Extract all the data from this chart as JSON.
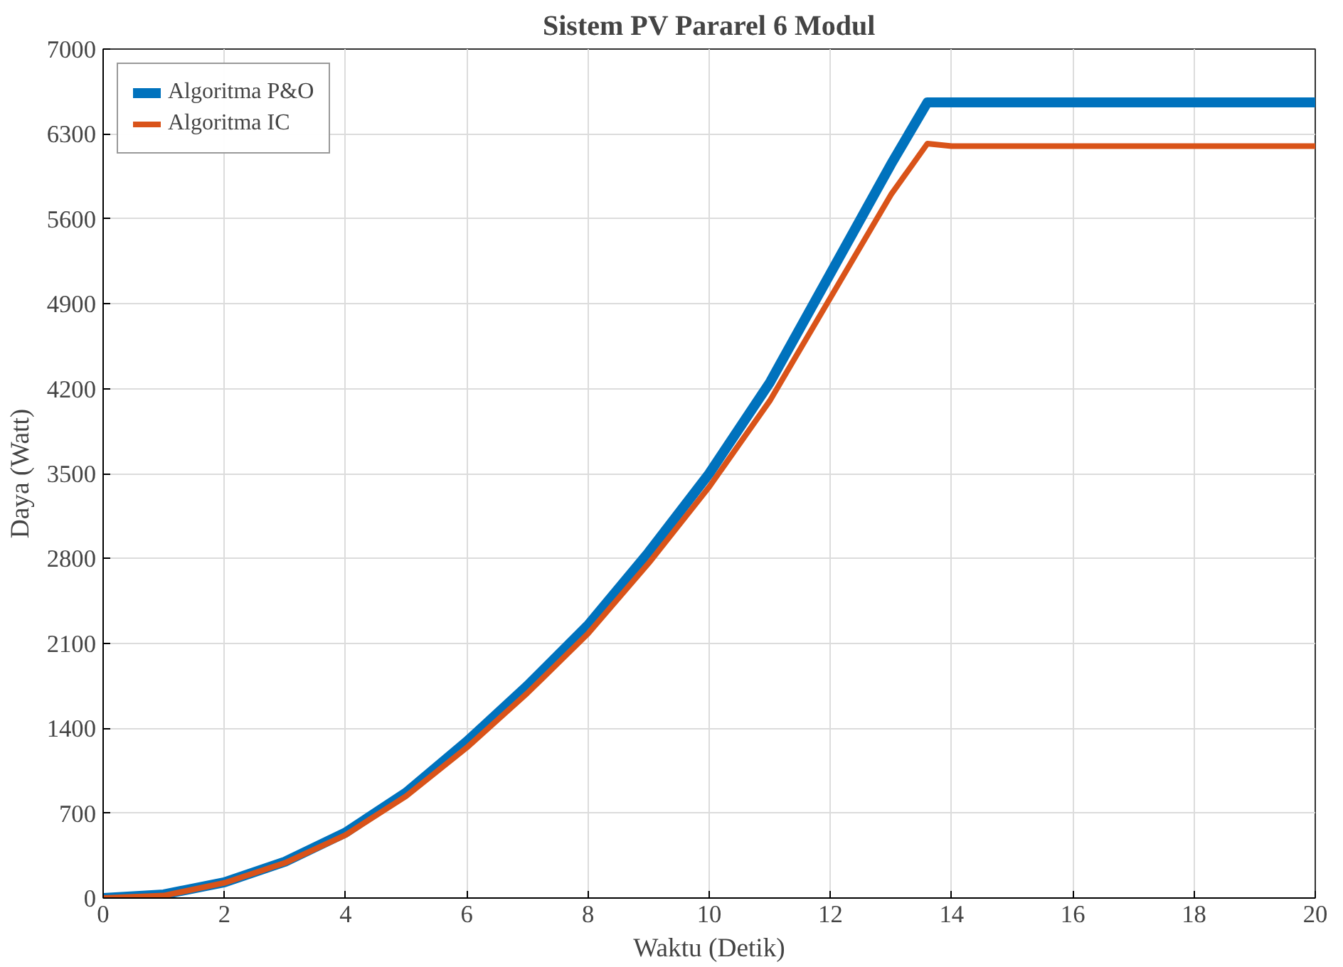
{
  "chart_data": {
    "type": "line",
    "title": "Sistem PV Pararel 6 Modul",
    "xlabel": "Waktu (Detik)",
    "ylabel": "Daya (Watt)",
    "xlim": [
      0,
      20
    ],
    "xticks": [
      0,
      2,
      4,
      6,
      8,
      10,
      12,
      14,
      16,
      18,
      20
    ],
    "ylim": [
      0,
      7000
    ],
    "yticks": [
      0,
      700,
      1400,
      2100,
      2800,
      3500,
      4200,
      4900,
      5600,
      6300,
      7000
    ],
    "grid": true,
    "legend": "top left",
    "line_style": "solid",
    "marker": "none",
    "x": [
      0,
      1,
      2,
      3,
      4,
      5,
      6,
      7,
      8,
      9,
      10,
      11,
      12,
      13,
      13.6,
      14,
      16,
      18,
      20
    ],
    "series": [
      {
        "name": "Algoritma P&O",
        "color": "#0072bd",
        "values": [
          0,
          30,
          130,
          300,
          540,
          870,
          1290,
          1750,
          2250,
          2850,
          3500,
          4250,
          5150,
          6050,
          6560,
          6560,
          6560,
          6560,
          6560
        ]
      },
      {
        "name": "Algoritma IC",
        "color": "#d95319",
        "values": [
          0,
          20,
          125,
          290,
          520,
          840,
          1240,
          1690,
          2180,
          2760,
          3390,
          4100,
          4950,
          5800,
          6220,
          6200,
          6200,
          6200,
          6200
        ]
      }
    ]
  }
}
